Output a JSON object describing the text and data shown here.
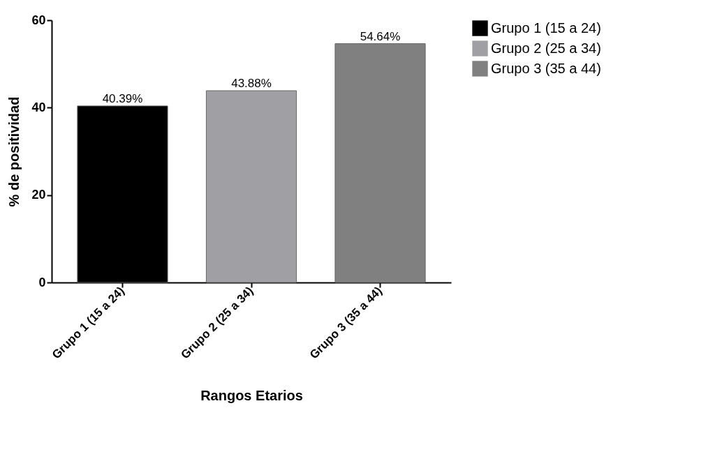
{
  "chart_data": {
    "type": "bar",
    "xlabel": "Rangos Etarios",
    "ylabel": "% de positividad",
    "categories": [
      "Grupo 1 (15 a 24)",
      "Grupo 2 (25 a 34)",
      "Grupo 3 (35 a 44)"
    ],
    "series": [
      {
        "name": "Grupo 1 (15 a 24)",
        "color": "#000000",
        "values": [
          40.39,
          null,
          null
        ],
        "value_labels": [
          "40.39%",
          null,
          null
        ]
      },
      {
        "name": "Grupo 2 (25 a 34)",
        "color": "#a0a0a4",
        "values": [
          null,
          43.88,
          null
        ],
        "value_labels": [
          null,
          "43.88%",
          null
        ]
      },
      {
        "name": "Grupo 3 (35 a 44)",
        "color": "#808080",
        "values": [
          null,
          null,
          54.64
        ],
        "value_labels": [
          null,
          null,
          "54.64%"
        ]
      }
    ],
    "ylim": [
      0,
      60
    ],
    "yticks": [
      0,
      20,
      40,
      60
    ],
    "grid": false,
    "legend": "top right"
  }
}
